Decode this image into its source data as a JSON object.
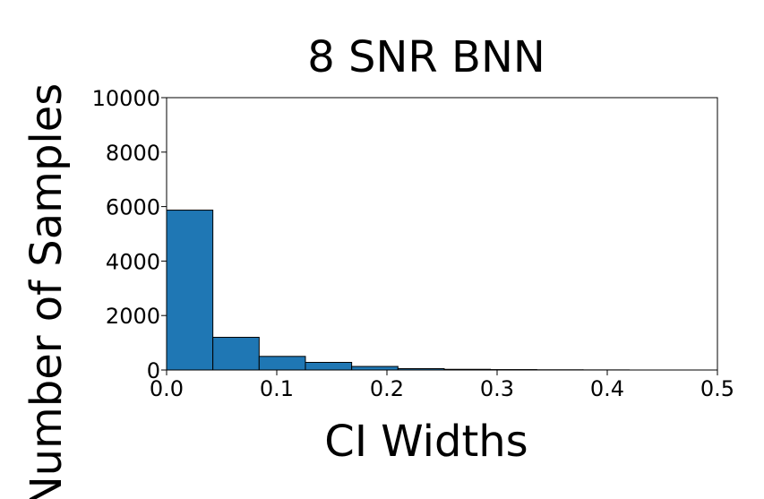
{
  "chart_data": {
    "type": "bar",
    "title": "8 SNR BNN",
    "xlabel": "CI Widths",
    "ylabel": "Number of Samples",
    "xlim": [
      0,
      0.5
    ],
    "ylim": [
      0,
      10000
    ],
    "xticks": [
      "0.0",
      "0.1",
      "0.2",
      "0.3",
      "0.4",
      "0.5"
    ],
    "yticks": [
      "0",
      "2000",
      "4000",
      "6000",
      "8000",
      "10000"
    ],
    "bin_width": 0.042,
    "bins": [
      {
        "x0": 0.0,
        "x1": 0.042,
        "value": 5870
      },
      {
        "x0": 0.042,
        "x1": 0.084,
        "value": 1200
      },
      {
        "x0": 0.084,
        "x1": 0.126,
        "value": 500
      },
      {
        "x0": 0.126,
        "x1": 0.168,
        "value": 280
      },
      {
        "x0": 0.168,
        "x1": 0.21,
        "value": 130
      },
      {
        "x0": 0.21,
        "x1": 0.252,
        "value": 50
      },
      {
        "x0": 0.252,
        "x1": 0.294,
        "value": 25
      },
      {
        "x0": 0.294,
        "x1": 0.336,
        "value": 15
      },
      {
        "x0": 0.336,
        "x1": 0.378,
        "value": 8
      },
      {
        "x0": 0.378,
        "x1": 0.42,
        "value": 4
      }
    ],
    "bar_color": "#1f77b4",
    "edge_color": "#000000",
    "grid": false,
    "legend": false
  }
}
